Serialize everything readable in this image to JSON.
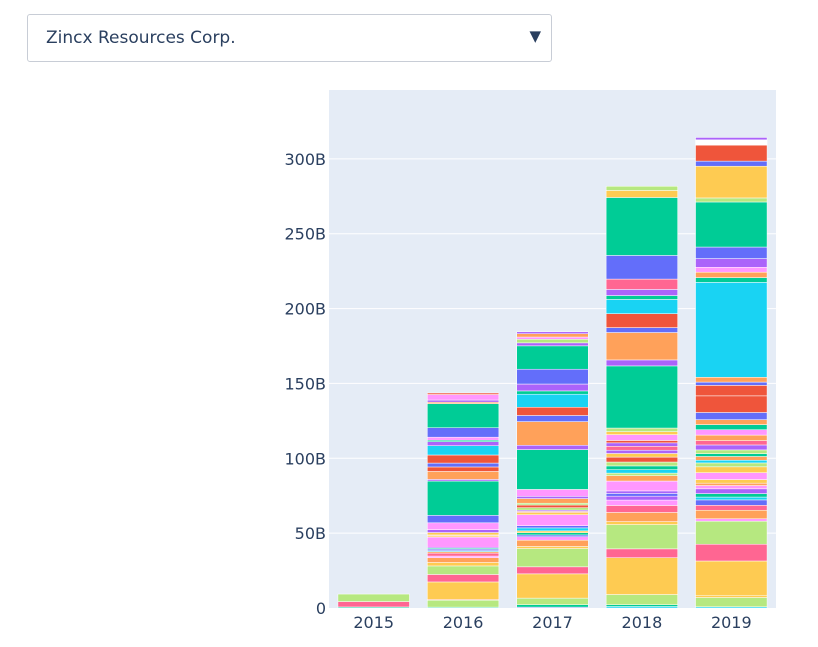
{
  "dropdown": {
    "selected": "Zincx Resources Corp.",
    "arrow_icon": "triangle-down-icon"
  },
  "chart_data": {
    "type": "bar",
    "stacked": true,
    "categories": [
      "2015",
      "2016",
      "2017",
      "2018",
      "2019"
    ],
    "ylim": [
      0,
      346
    ],
    "yticks": [
      0,
      50,
      100,
      150,
      200,
      250,
      300
    ],
    "ytick_labels": [
      "0",
      "50B",
      "100B",
      "150B",
      "200B",
      "250B",
      "300B"
    ],
    "background": "#e5ecf6",
    "grid": true,
    "palette": [
      "#636efa",
      "#ef553b",
      "#00cc96",
      "#ab63fa",
      "#ffa15a",
      "#19d3f3",
      "#ff6692",
      "#b6e880",
      "#ff97ff",
      "#fecb52"
    ],
    "stacks": [
      [
        {
          "v": 0.7,
          "c": "#00cc96"
        },
        {
          "v": 3.6,
          "c": "#ff6692"
        },
        {
          "v": 5.0,
          "c": "#b6e880"
        }
      ],
      [
        {
          "v": 0.6,
          "c": "#00cc96"
        },
        {
          "v": 4.6,
          "c": "#b6e880"
        },
        {
          "v": 0.6,
          "c": "#ffa15a"
        },
        {
          "v": 11.6,
          "c": "#fecb52"
        },
        {
          "v": 5.0,
          "c": "#ff6692"
        },
        {
          "v": 5.7,
          "c": "#b6e880"
        },
        {
          "v": 2.3,
          "c": "#fecb52"
        },
        {
          "v": 3.2,
          "c": "#ffa15a"
        },
        {
          "v": 1.1,
          "c": "#ff97ff"
        },
        {
          "v": 2.0,
          "c": "#ff6692"
        },
        {
          "v": 1.0,
          "c": "#ffa15a"
        },
        {
          "v": 0.6,
          "c": "#19d3f3"
        },
        {
          "v": 1.0,
          "c": "#636efa"
        },
        {
          "v": 0.6,
          "c": "#00cc96"
        },
        {
          "v": 0.7,
          "c": "#ab63fa"
        },
        {
          "v": 6.8,
          "c": "#ff97ff"
        },
        {
          "v": 0.8,
          "c": "#fecb52"
        },
        {
          "v": 0.6,
          "c": "#ffa15a"
        },
        {
          "v": 1.6,
          "c": "#fecb52"
        },
        {
          "v": 1.9,
          "c": "#ab63fa"
        },
        {
          "v": 4.6,
          "c": "#ff97ff"
        },
        {
          "v": 5.0,
          "c": "#636efa"
        },
        {
          "v": 22.9,
          "c": "#00cc96"
        },
        {
          "v": 1.1,
          "c": "#ab63fa"
        },
        {
          "v": 5.3,
          "c": "#ffa15a"
        },
        {
          "v": 3.0,
          "c": "#ef553b"
        },
        {
          "v": 2.6,
          "c": "#636efa"
        },
        {
          "v": 5.4,
          "c": "#ef553b"
        },
        {
          "v": 6.2,
          "c": "#19d3f3"
        },
        {
          "v": 2.7,
          "c": "#ab63fa"
        },
        {
          "v": 1.0,
          "c": "#00cc96"
        },
        {
          "v": 2.0,
          "c": "#ff97ff"
        },
        {
          "v": 6.3,
          "c": "#636efa"
        },
        {
          "v": 16.1,
          "c": "#00cc96"
        },
        {
          "v": 1.0,
          "c": "#ffa15a"
        },
        {
          "v": 1.4,
          "c": "#ab63fa"
        },
        {
          "v": 3.7,
          "c": "#ff97ff"
        },
        {
          "v": 1.0,
          "c": "#ef553b"
        }
      ],
      [
        {
          "v": 0.6,
          "c": "#636efa"
        },
        {
          "v": 1.6,
          "c": "#00cc96"
        },
        {
          "v": 4.4,
          "c": "#b6e880"
        },
        {
          "v": 16.2,
          "c": "#fecb52"
        },
        {
          "v": 4.7,
          "c": "#ff6692"
        },
        {
          "v": 12.2,
          "c": "#b6e880"
        },
        {
          "v": 1.4,
          "c": "#fecb52"
        },
        {
          "v": 4.2,
          "c": "#ffa15a"
        },
        {
          "v": 2.3,
          "c": "#ff97ff"
        },
        {
          "v": 1.2,
          "c": "#636efa"
        },
        {
          "v": 1.5,
          "c": "#00cc96"
        },
        {
          "v": 1.2,
          "c": "#fecb52"
        },
        {
          "v": 2.0,
          "c": "#19d3f3"
        },
        {
          "v": 1.5,
          "c": "#636efa"
        },
        {
          "v": 7.3,
          "c": "#ff97ff"
        },
        {
          "v": 1.4,
          "c": "#fecb52"
        },
        {
          "v": 0.8,
          "c": "#ffa15a"
        },
        {
          "v": 0.9,
          "c": "#ab63fa"
        },
        {
          "v": 1.6,
          "c": "#b6e880"
        },
        {
          "v": 1.8,
          "c": "#ef553b"
        },
        {
          "v": 1.2,
          "c": "#b6e880"
        },
        {
          "v": 3.1,
          "c": "#ffa15a"
        },
        {
          "v": 1.5,
          "c": "#ab63fa"
        },
        {
          "v": 4.6,
          "c": "#ff97ff"
        },
        {
          "v": 26.6,
          "c": "#00cc96"
        },
        {
          "v": 2.9,
          "c": "#ab63fa"
        },
        {
          "v": 15.8,
          "c": "#ffa15a"
        },
        {
          "v": 4.1,
          "c": "#636efa"
        },
        {
          "v": 5.5,
          "c": "#ef553b"
        },
        {
          "v": 8.7,
          "c": "#19d3f3"
        },
        {
          "v": 2.2,
          "c": "#00cc96"
        },
        {
          "v": 4.6,
          "c": "#ab63fa"
        },
        {
          "v": 9.9,
          "c": "#636efa"
        },
        {
          "v": 15.6,
          "c": "#00cc96"
        },
        {
          "v": 2.0,
          "c": "#ab63fa"
        },
        {
          "v": 2.4,
          "c": "#b6e880"
        },
        {
          "v": 1.5,
          "c": "#ff97ff"
        },
        {
          "v": 2.2,
          "c": "#ffa15a"
        },
        {
          "v": 1.3,
          "c": "#ab63fa"
        }
      ],
      [
        {
          "v": 1.0,
          "c": "#19d3f3"
        },
        {
          "v": 1.2,
          "c": "#00cc96"
        },
        {
          "v": 6.8,
          "c": "#b6e880"
        },
        {
          "v": 24.6,
          "c": "#fecb52"
        },
        {
          "v": 5.9,
          "c": "#ff6692"
        },
        {
          "v": 16.2,
          "c": "#b6e880"
        },
        {
          "v": 2.0,
          "c": "#fecb52"
        },
        {
          "v": 6.1,
          "c": "#ffa15a"
        },
        {
          "v": 4.7,
          "c": "#ff6692"
        },
        {
          "v": 3.6,
          "c": "#ff97ff"
        },
        {
          "v": 2.6,
          "c": "#ab63fa"
        },
        {
          "v": 1.8,
          "c": "#636efa"
        },
        {
          "v": 1.7,
          "c": "#ab63fa"
        },
        {
          "v": 6.6,
          "c": "#ff97ff"
        },
        {
          "v": 3.6,
          "c": "#ffa15a"
        },
        {
          "v": 1.7,
          "c": "#b6e880"
        },
        {
          "v": 2.3,
          "c": "#19d3f3"
        },
        {
          "v": 2.5,
          "c": "#00cc96"
        },
        {
          "v": 2.6,
          "c": "#b6e880"
        },
        {
          "v": 3.3,
          "c": "#ef553b"
        },
        {
          "v": 2.4,
          "c": "#fecb52"
        },
        {
          "v": 2.2,
          "c": "#ab63fa"
        },
        {
          "v": 2.6,
          "c": "#ff6692"
        },
        {
          "v": 2.3,
          "c": "#ab63fa"
        },
        {
          "v": 1.6,
          "c": "#ef553b"
        },
        {
          "v": 3.9,
          "c": "#ff97ff"
        },
        {
          "v": 2.0,
          "c": "#fecb52"
        },
        {
          "v": 2.4,
          "c": "#b6e880"
        },
        {
          "v": 41.5,
          "c": "#00cc96"
        },
        {
          "v": 4.0,
          "c": "#ab63fa"
        },
        {
          "v": 18.3,
          "c": "#ffa15a"
        },
        {
          "v": 3.3,
          "c": "#636efa"
        },
        {
          "v": 9.3,
          "c": "#ef553b"
        },
        {
          "v": 9.5,
          "c": "#19d3f3"
        },
        {
          "v": 2.6,
          "c": "#00cc96"
        },
        {
          "v": 4.1,
          "c": "#ab63fa"
        },
        {
          "v": 6.9,
          "c": "#ff6692"
        },
        {
          "v": 15.8,
          "c": "#636efa"
        },
        {
          "v": 38.7,
          "c": "#00cc96"
        },
        {
          "v": 4.7,
          "c": "#fecb52"
        },
        {
          "v": 2.8,
          "c": "#b6e880"
        }
      ],
      [
        {
          "v": 0.8,
          "c": "#19d3f3"
        },
        {
          "v": 6.2,
          "c": "#b6e880"
        },
        {
          "v": 1.2,
          "c": "#fecb52"
        },
        {
          "v": 23.2,
          "c": "#fecb52"
        },
        {
          "v": 11.2,
          "c": "#ff6692"
        },
        {
          "v": 15.4,
          "c": "#b6e880"
        },
        {
          "v": 1.6,
          "c": "#ff97ff"
        },
        {
          "v": 5.7,
          "c": "#ffa15a"
        },
        {
          "v": 3.3,
          "c": "#ff6692"
        },
        {
          "v": 3.6,
          "c": "#636efa"
        },
        {
          "v": 1.9,
          "c": "#19d3f3"
        },
        {
          "v": 2.3,
          "c": "#00cc96"
        },
        {
          "v": 3.2,
          "c": "#ab63fa"
        },
        {
          "v": 2.2,
          "c": "#ff97ff"
        },
        {
          "v": 1.6,
          "c": "#ffa15a"
        },
        {
          "v": 2.4,
          "c": "#fecb52"
        },
        {
          "v": 4.6,
          "c": "#ff97ff"
        },
        {
          "v": 3.9,
          "c": "#fecb52"
        },
        {
          "v": 2.6,
          "c": "#b6e880"
        },
        {
          "v": 1.8,
          "c": "#19d3f3"
        },
        {
          "v": 2.5,
          "c": "#ffa15a"
        },
        {
          "v": 1.9,
          "c": "#00cc96"
        },
        {
          "v": 2.5,
          "c": "#b6e880"
        },
        {
          "v": 3.3,
          "c": "#ab63fa"
        },
        {
          "v": 2.9,
          "c": "#ff6692"
        },
        {
          "v": 3.7,
          "c": "#ffa15a"
        },
        {
          "v": 3.6,
          "c": "#ff97ff"
        },
        {
          "v": 3.4,
          "c": "#00cc96"
        },
        {
          "v": 3.3,
          "c": "#ffa15a"
        },
        {
          "v": 4.8,
          "c": "#636efa"
        },
        {
          "v": 11.1,
          "c": "#ef553b"
        },
        {
          "v": 7.0,
          "c": "#ef553b"
        },
        {
          "v": 2.2,
          "c": "#636efa"
        },
        {
          "v": 3.2,
          "c": "#ffa15a"
        },
        {
          "v": 63.4,
          "c": "#19d3f3"
        },
        {
          "v": 3.2,
          "c": "#00cc96"
        },
        {
          "v": 3.6,
          "c": "#ffa15a"
        },
        {
          "v": 3.3,
          "c": "#ff97ff"
        },
        {
          "v": 5.8,
          "c": "#ab63fa"
        },
        {
          "v": 7.7,
          "c": "#636efa"
        },
        {
          "v": 30.1,
          "c": "#00cc96"
        },
        {
          "v": 2.7,
          "c": "#b6e880"
        },
        {
          "v": 21.2,
          "c": "#fecb52"
        },
        {
          "v": 3.4,
          "c": "#636efa"
        },
        {
          "v": 10.7,
          "c": "#ef553b"
        },
        {
          "v": 3.5,
          "c": "#ffffff"
        },
        {
          "v": 1.6,
          "c": "#ab63fa"
        }
      ]
    ]
  }
}
